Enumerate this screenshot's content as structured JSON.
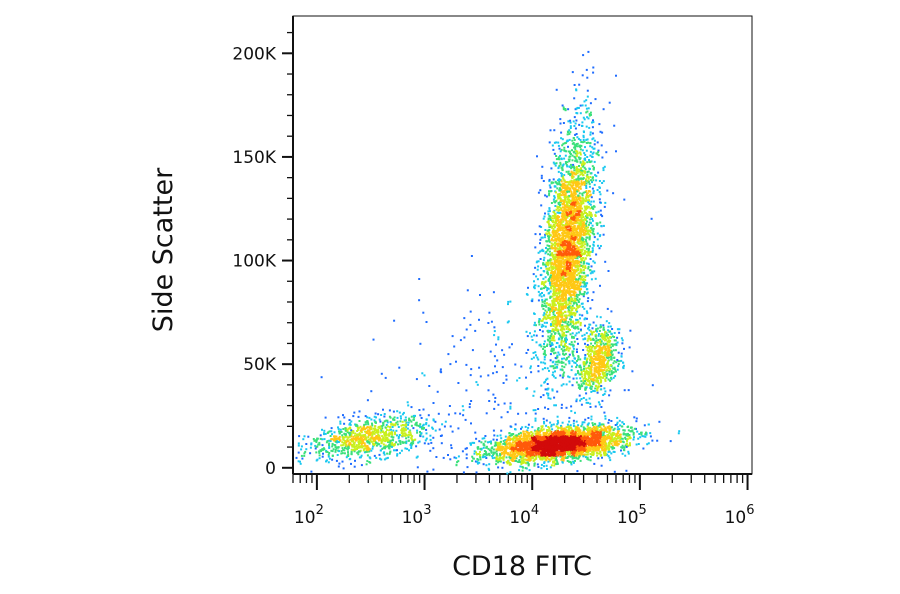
{
  "chart_data": {
    "type": "scatter",
    "title": "",
    "xlabel": "CD18 FITC",
    "ylabel": "Side Scatter",
    "x_scale": "log",
    "xlim": [
      60,
      1100000
    ],
    "ylim": [
      -3000,
      218000
    ],
    "x_ticks": [
      {
        "value": 100,
        "base": "10",
        "exp": "2"
      },
      {
        "value": 1000,
        "base": "10",
        "exp": "3"
      },
      {
        "value": 10000,
        "base": "10",
        "exp": "4"
      },
      {
        "value": 100000,
        "base": "10",
        "exp": "5"
      },
      {
        "value": 1000000,
        "base": "10",
        "exp": "6"
      }
    ],
    "y_ticks": [
      {
        "value": 0,
        "label": "0"
      },
      {
        "value": 50000,
        "label": "50K"
      },
      {
        "value": 100000,
        "label": "100K"
      },
      {
        "value": 150000,
        "label": "150K"
      },
      {
        "value": 200000,
        "label": "200K"
      }
    ],
    "grid": false,
    "colormap": [
      "#1010d0",
      "#1e6cff",
      "#19c8f0",
      "#3ae07a",
      "#c8f01e",
      "#ffc814",
      "#ff5a0a",
      "#d20a0a"
    ],
    "populations": [
      {
        "id": "lymphocytes",
        "x_center": 17000,
        "y_center": 12000,
        "count": 3200
      },
      {
        "id": "granulocytes",
        "x_center": 21000,
        "y_center": 107000,
        "count": 3400
      },
      {
        "id": "monocytes",
        "x_center": 40000,
        "y_center": 52000,
        "count": 700
      },
      {
        "id": "cd18-negative-events",
        "x_center": 300,
        "y_center": 15000,
        "count": 900
      },
      {
        "id": "debris",
        "x_center": 5000,
        "y_center": 40000,
        "count": 260
      }
    ]
  }
}
